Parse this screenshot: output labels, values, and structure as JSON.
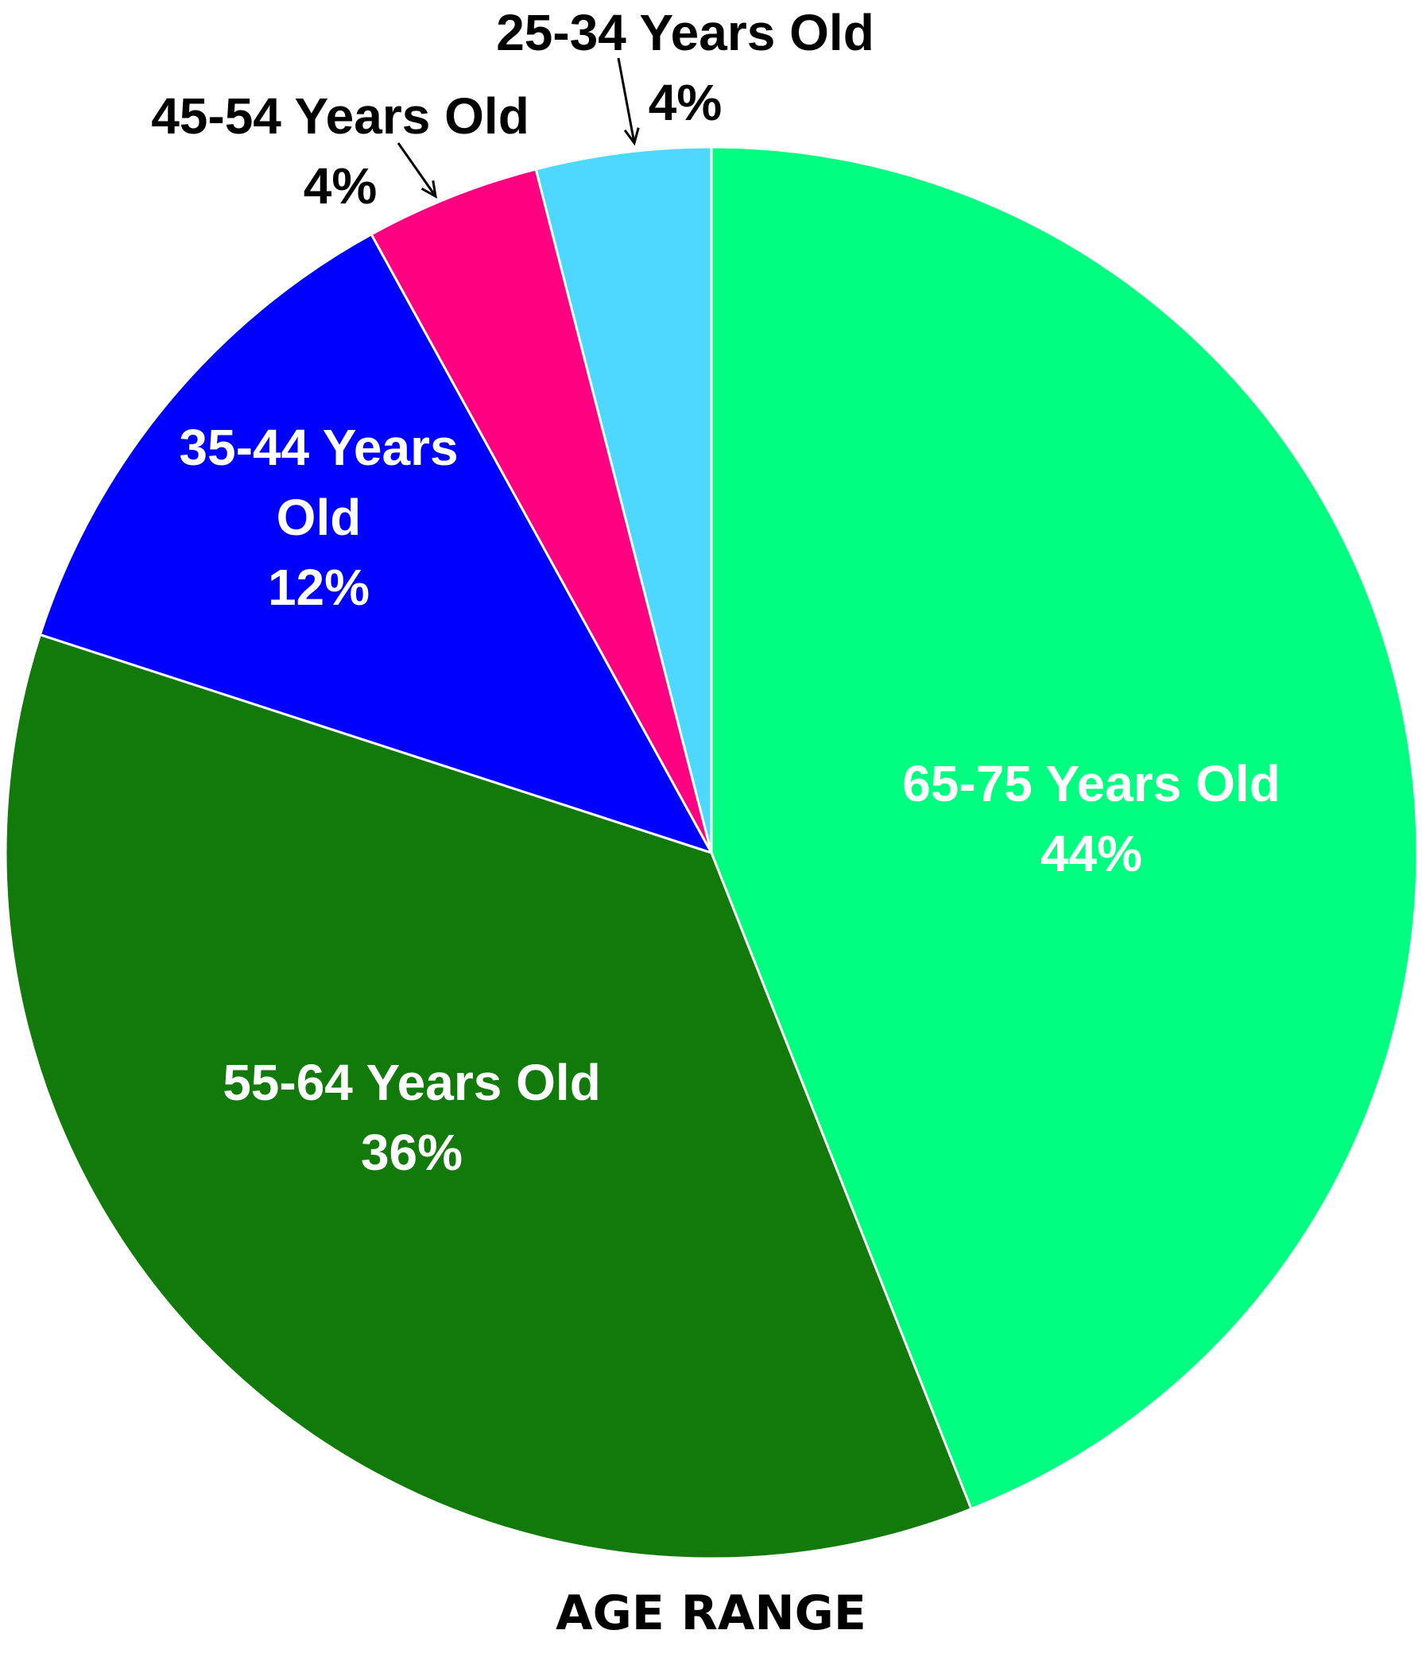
{
  "chart_data": {
    "type": "pie",
    "title": "AGE RANGE",
    "categories": [
      "65-75 Years Old",
      "55-64 Years Old",
      "35-44 Years Old",
      "45-54 Years Old",
      "25-34 Years Old"
    ],
    "values": [
      44,
      36,
      12,
      4,
      4
    ],
    "value_labels": [
      "44%",
      "36%",
      "12%",
      "4%",
      "4%"
    ],
    "colors": [
      "#00ff80",
      "#127a0a",
      "#0000ff",
      "#ff0080",
      "#4fd8ff"
    ]
  }
}
